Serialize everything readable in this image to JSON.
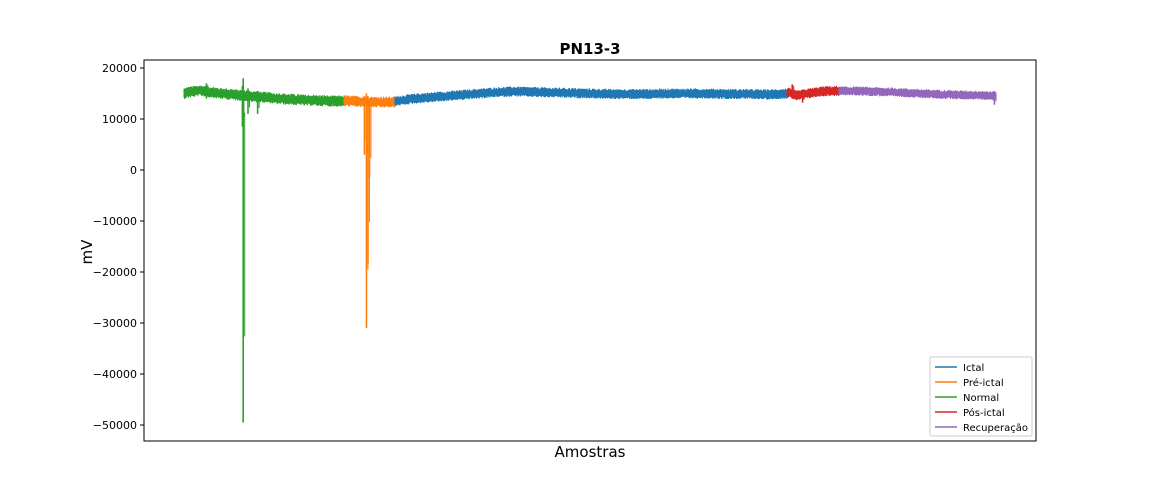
{
  "chart_data": {
    "type": "line",
    "title": "PN13-3",
    "xlabel": "Amostras",
    "ylabel": "mV",
    "x_ticks_shown": false,
    "ylim": [
      -53000,
      22000
    ],
    "y_ticks": [
      20000,
      10000,
      0,
      -10000,
      -20000,
      -30000,
      -40000,
      -50000
    ],
    "y_tick_labels": [
      "20000",
      "10000",
      "0",
      "−10000",
      "−20000",
      "−30000",
      "−40000",
      "−50000"
    ],
    "grid": false,
    "legend_position": "lower-right",
    "legend_order": [
      "Ictal",
      "Pré-ictal",
      "Normal",
      "Pós-ictal",
      "Recuperação"
    ],
    "series": [
      {
        "name": "Normal",
        "color": "#2ca02c",
        "x": [
          0.0,
          0.02,
          0.04,
          0.06,
          0.08,
          0.1,
          0.12,
          0.135,
          0.15,
          0.17,
          0.19,
          0.21,
          0.23,
          0.25,
          0.27,
          0.29,
          0.31,
          0.33,
          0.35,
          0.37,
          0.39,
          0.41,
          0.43,
          0.45,
          0.47,
          0.49,
          0.51,
          0.53,
          0.55,
          0.57,
          0.59,
          0.61,
          0.63,
          0.65,
          0.67,
          0.69,
          0.71,
          0.73,
          0.75,
          0.77,
          0.79,
          0.81,
          0.83,
          0.85,
          0.87,
          0.89,
          0.91,
          0.93,
          0.95,
          0.97,
          1.0
        ],
        "y_center": [
          15000,
          15200,
          15300,
          15400,
          15500,
          15600,
          15500,
          15400,
          15300,
          15300,
          15200,
          15100,
          15000,
          15000,
          14900,
          14900,
          14800,
          14700,
          14700,
          14600,
          14600,
          14500,
          14400,
          14400,
          14300,
          14300,
          14200,
          14200,
          14100,
          14000,
          14000,
          14000,
          13900,
          13900,
          13900,
          13800,
          13800,
          13800,
          13700,
          13700,
          13700,
          13700,
          13600,
          13600,
          13600,
          13600,
          13500,
          13500,
          13500,
          13500,
          13500
        ],
        "y_spread": 1100,
        "spikes": [
          {
            "x": 0.37,
            "min": -49500,
            "max": 18000
          },
          {
            "x": 0.365,
            "min": 8500,
            "max": 16500
          },
          {
            "x": 0.4,
            "min": 11000,
            "max": 16000
          },
          {
            "x": 0.46,
            "min": 11000,
            "max": 15500
          },
          {
            "x": 0.14,
            "min": 14000,
            "max": 17000
          }
        ]
      },
      {
        "name": "Pré-ictal",
        "color": "#ff7f0e",
        "x": [
          0.0,
          0.1,
          0.2,
          0.3,
          0.4,
          0.5,
          0.6,
          0.7,
          0.8,
          0.9,
          1.0
        ],
        "y_center": [
          13600,
          13500,
          13500,
          13400,
          13400,
          13400,
          13300,
          13300,
          13300,
          13300,
          13300
        ],
        "y_spread": 1100,
        "spikes": [
          {
            "x": 0.44,
            "min": -31000,
            "max": 15000
          },
          {
            "x": 0.4,
            "min": 3000,
            "max": 14500
          },
          {
            "x": 0.5,
            "min": -1500,
            "max": 14000
          },
          {
            "x": 0.47,
            "min": -18500,
            "max": 14500
          }
        ]
      },
      {
        "name": "Ictal",
        "color": "#1f77b4",
        "x": [
          0.0,
          0.05,
          0.1,
          0.15,
          0.2,
          0.25,
          0.3,
          0.35,
          0.4,
          0.45,
          0.5,
          0.55,
          0.6,
          0.65,
          0.7,
          0.75,
          0.8,
          0.85,
          0.9,
          0.95,
          1.0
        ],
        "y_center": [
          13500,
          14000,
          14300,
          14600,
          14900,
          15200,
          15400,
          15300,
          15200,
          15100,
          15000,
          14900,
          14900,
          14900,
          15000,
          15000,
          15000,
          14900,
          14900,
          14800,
          15000
        ],
        "y_spread": 1000,
        "spikes": []
      },
      {
        "name": "Pós-ictal",
        "color": "#d62728",
        "x": [
          0.0,
          0.2,
          0.4,
          0.6,
          0.8,
          1.0
        ],
        "y_center": [
          15200,
          14600,
          15000,
          15300,
          15500,
          15500
        ],
        "y_spread": 1000,
        "spikes": [
          {
            "x": 0.3,
            "min": 13200,
            "max": 15500
          },
          {
            "x": 0.1,
            "min": 14000,
            "max": 16800
          }
        ]
      },
      {
        "name": "Recuperação",
        "color": "#9467bd",
        "x": [
          0.0,
          0.1,
          0.2,
          0.3,
          0.4,
          0.5,
          0.6,
          0.7,
          0.8,
          0.9,
          1.0
        ],
        "y_center": [
          15500,
          15500,
          15400,
          15300,
          15200,
          15000,
          14900,
          14800,
          14700,
          14700,
          14500
        ],
        "y_spread": 900,
        "spikes": [
          {
            "x": 0.99,
            "min": 12800,
            "max": 15500
          }
        ]
      }
    ]
  }
}
